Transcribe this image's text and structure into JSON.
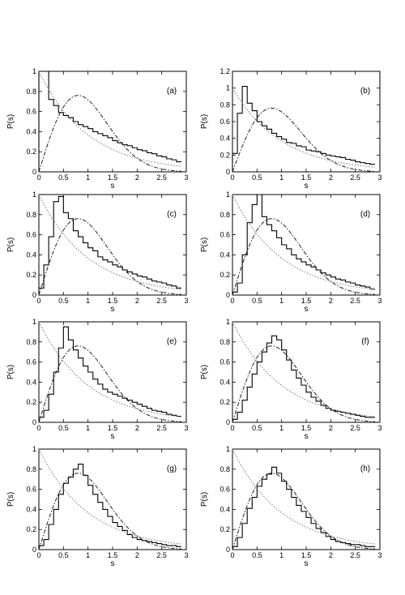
{
  "chart_data": [
    {
      "type": "line",
      "panel_label": "(a)",
      "xlabel": "s",
      "ylabel": "P(s)",
      "xlim": [
        0,
        3
      ],
      "ylim": [
        0,
        1
      ],
      "xticks": [
        "0",
        "0.5",
        "1",
        "1.5",
        "2",
        "2.5",
        "3"
      ],
      "yticks": [
        "0",
        "0.2",
        "0.4",
        "0.6",
        "0.8",
        "1"
      ],
      "series": [
        {
          "kind": "histogram",
          "bin_width": 0.1,
          "values": [
            1.0,
            1.0,
            0.72,
            0.66,
            0.59,
            0.56,
            0.54,
            0.5,
            0.47,
            0.45,
            0.43,
            0.4,
            0.38,
            0.36,
            0.34,
            0.31,
            0.29,
            0.27,
            0.26,
            0.24,
            0.22,
            0.21,
            0.19,
            0.18,
            0.16,
            0.15,
            0.13,
            0.12,
            0.1
          ]
        },
        {
          "kind": "curve",
          "function": "poisson",
          "style": "dotted"
        },
        {
          "kind": "curve",
          "function": "wigner",
          "style": "dash-dot"
        }
      ]
    },
    {
      "type": "line",
      "panel_label": "(b)",
      "xlabel": "s",
      "ylabel": "P(s)",
      "xlim": [
        0,
        3
      ],
      "ylim": [
        0,
        1.2
      ],
      "xticks": [
        "0",
        "0.5",
        "1",
        "1.5",
        "2",
        "2.5",
        "3"
      ],
      "yticks": [
        "0",
        "0.2",
        "0.4",
        "0.6",
        "0.8",
        "1",
        "1.2"
      ],
      "series": [
        {
          "kind": "histogram",
          "bin_width": 0.1,
          "values": [
            0.22,
            0.7,
            1.02,
            0.82,
            0.73,
            0.6,
            0.55,
            0.51,
            0.46,
            0.42,
            0.39,
            0.35,
            0.34,
            0.31,
            0.3,
            0.26,
            0.25,
            0.24,
            0.22,
            0.2,
            0.19,
            0.18,
            0.17,
            0.15,
            0.14,
            0.12,
            0.11,
            0.1,
            0.09
          ]
        },
        {
          "kind": "curve",
          "function": "poisson",
          "style": "dotted"
        },
        {
          "kind": "curve",
          "function": "wigner",
          "style": "dash-dot"
        }
      ]
    },
    {
      "type": "line",
      "panel_label": "(c)",
      "xlabel": "s",
      "ylabel": "P(s)",
      "xlim": [
        0,
        3
      ],
      "ylim": [
        0,
        1
      ],
      "xticks": [
        "0",
        "0.5",
        "1",
        "1.5",
        "2",
        "2.5",
        "3"
      ],
      "yticks": [
        "0",
        "0.2",
        "0.4",
        "0.6",
        "0.8",
        "1"
      ],
      "series": [
        {
          "kind": "histogram",
          "bin_width": 0.1,
          "values": [
            0.07,
            0.3,
            0.58,
            0.93,
            0.98,
            0.82,
            0.76,
            0.64,
            0.58,
            0.52,
            0.47,
            0.44,
            0.38,
            0.35,
            0.33,
            0.3,
            0.28,
            0.25,
            0.23,
            0.21,
            0.19,
            0.18,
            0.16,
            0.14,
            0.13,
            0.12,
            0.1,
            0.09,
            0.07
          ]
        },
        {
          "kind": "curve",
          "function": "poisson",
          "style": "dotted"
        },
        {
          "kind": "curve",
          "function": "wigner",
          "style": "dash-dot"
        }
      ]
    },
    {
      "type": "line",
      "panel_label": "(d)",
      "xlabel": "s",
      "ylabel": "P(s)",
      "xlim": [
        0,
        3
      ],
      "ylim": [
        0,
        1
      ],
      "xticks": [
        "0",
        "0.5",
        "1",
        "1.5",
        "2",
        "2.5",
        "3"
      ],
      "yticks": [
        "0",
        "0.2",
        "0.4",
        "0.6",
        "0.8",
        "1"
      ],
      "series": [
        {
          "kind": "histogram",
          "bin_width": 0.1,
          "values": [
            0.03,
            0.12,
            0.4,
            0.72,
            0.9,
            1.0,
            0.78,
            0.7,
            0.64,
            0.57,
            0.5,
            0.46,
            0.4,
            0.36,
            0.33,
            0.3,
            0.28,
            0.25,
            0.22,
            0.2,
            0.18,
            0.16,
            0.15,
            0.13,
            0.12,
            0.1,
            0.09,
            0.08,
            0.06
          ]
        },
        {
          "kind": "curve",
          "function": "poisson",
          "style": "dotted"
        },
        {
          "kind": "curve",
          "function": "wigner",
          "style": "dash-dot"
        }
      ]
    },
    {
      "type": "line",
      "panel_label": "(e)",
      "xlabel": "s",
      "ylabel": "P(s)",
      "xlim": [
        0,
        3
      ],
      "ylim": [
        0,
        1
      ],
      "xticks": [
        "0",
        "0.5",
        "1",
        "1.5",
        "2",
        "2.5",
        "3"
      ],
      "yticks": [
        "0",
        "0.2",
        "0.4",
        "0.6",
        "0.8",
        "1"
      ],
      "series": [
        {
          "kind": "histogram",
          "bin_width": 0.1,
          "values": [
            0.05,
            0.12,
            0.28,
            0.5,
            0.74,
            0.95,
            0.82,
            0.72,
            0.64,
            0.56,
            0.5,
            0.43,
            0.38,
            0.33,
            0.3,
            0.28,
            0.26,
            0.24,
            0.22,
            0.2,
            0.18,
            0.16,
            0.14,
            0.12,
            0.11,
            0.1,
            0.08,
            0.07,
            0.06
          ]
        },
        {
          "kind": "curve",
          "function": "poisson",
          "style": "dotted"
        },
        {
          "kind": "curve",
          "function": "wigner",
          "style": "dash-dot"
        }
      ]
    },
    {
      "type": "line",
      "panel_label": "(f)",
      "xlabel": "s",
      "ylabel": "P(s)",
      "xlim": [
        0,
        3
      ],
      "ylim": [
        0,
        1
      ],
      "xticks": [
        "0",
        "0.5",
        "1",
        "1.5",
        "2",
        "2.5",
        "3"
      ],
      "yticks": [
        "0",
        "0.2",
        "0.4",
        "0.6",
        "0.8",
        "1"
      ],
      "series": [
        {
          "kind": "histogram",
          "bin_width": 0.1,
          "values": [
            0.03,
            0.1,
            0.22,
            0.35,
            0.48,
            0.6,
            0.7,
            0.79,
            0.86,
            0.82,
            0.72,
            0.62,
            0.52,
            0.44,
            0.37,
            0.3,
            0.25,
            0.21,
            0.17,
            0.14,
            0.12,
            0.11,
            0.1,
            0.09,
            0.08,
            0.07,
            0.06,
            0.05,
            0.05
          ]
        },
        {
          "kind": "curve",
          "function": "poisson",
          "style": "dotted"
        },
        {
          "kind": "curve",
          "function": "wigner",
          "style": "dash-dot"
        }
      ]
    },
    {
      "type": "line",
      "panel_label": "(g)",
      "xlabel": "s",
      "ylabel": "P(s)",
      "xlim": [
        0,
        3
      ],
      "ylim": [
        0,
        1
      ],
      "xticks": [
        "0",
        "0.5",
        "1",
        "1.5",
        "2",
        "2.5",
        "3"
      ],
      "yticks": [
        "0",
        "0.2",
        "0.4",
        "0.6",
        "0.8",
        "1"
      ],
      "series": [
        {
          "kind": "histogram",
          "bin_width": 0.1,
          "values": [
            0.04,
            0.1,
            0.25,
            0.4,
            0.55,
            0.66,
            0.72,
            0.8,
            0.85,
            0.74,
            0.64,
            0.55,
            0.47,
            0.4,
            0.33,
            0.27,
            0.23,
            0.19,
            0.15,
            0.12,
            0.1,
            0.09,
            0.08,
            0.07,
            0.06,
            0.05,
            0.04,
            0.04,
            0.03
          ]
        },
        {
          "kind": "curve",
          "function": "poisson",
          "style": "dotted"
        },
        {
          "kind": "curve",
          "function": "wigner",
          "style": "dash-dot"
        }
      ]
    },
    {
      "type": "line",
      "panel_label": "(h)",
      "xlabel": "s",
      "ylabel": "P(s)",
      "xlim": [
        0,
        3
      ],
      "ylim": [
        0,
        1
      ],
      "xticks": [
        "0",
        "0.5",
        "1",
        "1.5",
        "2",
        "2.5",
        "3"
      ],
      "yticks": [
        "0",
        "0.2",
        "0.4",
        "0.6",
        "0.8",
        "1"
      ],
      "series": [
        {
          "kind": "histogram",
          "bin_width": 0.1,
          "values": [
            0.03,
            0.12,
            0.26,
            0.41,
            0.52,
            0.63,
            0.7,
            0.75,
            0.82,
            0.76,
            0.68,
            0.6,
            0.52,
            0.44,
            0.38,
            0.32,
            0.26,
            0.21,
            0.17,
            0.13,
            0.1,
            0.08,
            0.07,
            0.06,
            0.05,
            0.05,
            0.04,
            0.03,
            0.03
          ]
        },
        {
          "kind": "curve",
          "function": "poisson",
          "style": "dotted"
        },
        {
          "kind": "curve",
          "function": "wigner",
          "style": "dash-dot"
        }
      ]
    }
  ]
}
